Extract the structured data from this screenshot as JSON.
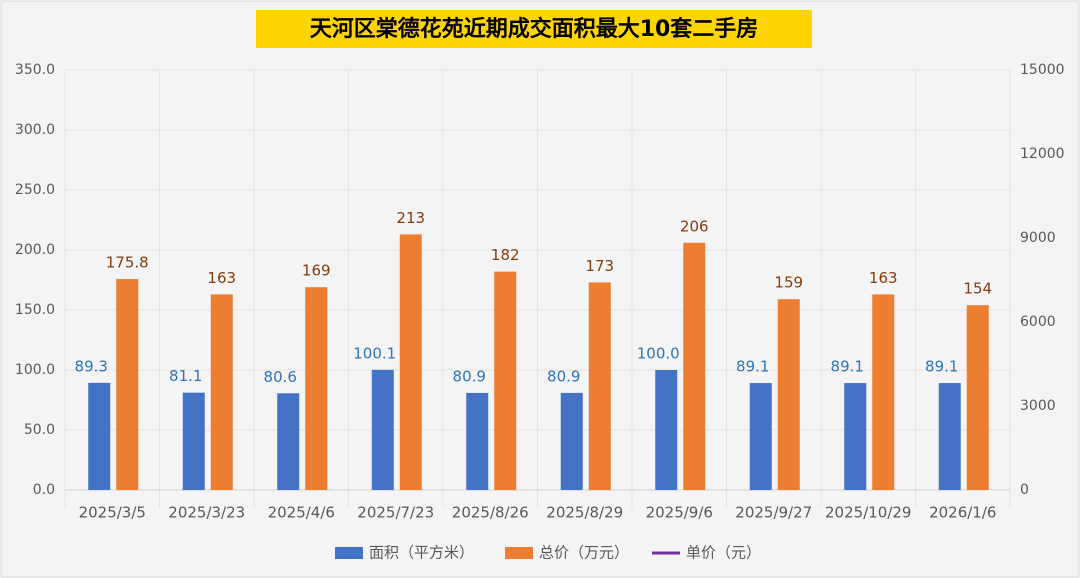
{
  "chart_data": {
    "type": "bar",
    "title": "天河区棠德花苑近期成交面积最大10套二手房",
    "categories": [
      "2025/3/5",
      "2025/3/23",
      "2025/4/6",
      "2025/7/23",
      "2025/8/26",
      "2025/8/29",
      "2025/9/6",
      "2025/9/27",
      "2025/10/29",
      "2026/1/6"
    ],
    "series": [
      {
        "name": "面积（平方米）",
        "color": "#4472c4",
        "values": [
          89.3,
          81.1,
          80.6,
          100.1,
          80.9,
          80.9,
          100.0,
          89.1,
          89.1,
          89.1
        ],
        "value_labels": [
          "89.3",
          "81.1",
          "80.6",
          "100.1",
          "80.9",
          "80.9",
          "100.0",
          "89.1",
          "89.1",
          "89.1"
        ]
      },
      {
        "name": "总价（万元）",
        "color": "#ed7d31",
        "values": [
          175.8,
          163,
          169,
          213,
          182,
          173,
          206,
          159,
          163,
          154
        ],
        "value_labels": [
          "175.8",
          "163",
          "169",
          "213",
          "182",
          "173",
          "206",
          "159",
          "163",
          "154"
        ]
      },
      {
        "name": "单价（元）",
        "color": "#7030a0",
        "axis": "y2",
        "type": "line",
        "values": [
          null,
          null,
          null,
          null,
          null,
          null,
          null,
          null,
          null,
          null
        ]
      }
    ],
    "ylim": [
      0,
      350
    ],
    "yticks": [
      {
        "value": 0,
        "label": "0.0"
      },
      {
        "value": 50,
        "label": "50.0"
      },
      {
        "value": 100,
        "label": "100.0"
      },
      {
        "value": 150,
        "label": "150.0"
      },
      {
        "value": 200,
        "label": "200.0"
      },
      {
        "value": 250,
        "label": "250.0"
      },
      {
        "value": 300,
        "label": "300.0"
      },
      {
        "value": 350,
        "label": "350.0"
      }
    ],
    "y2lim": [
      0,
      15000
    ],
    "y2ticks": [
      0,
      3000,
      6000,
      9000,
      12000,
      15000
    ],
    "grid": true,
    "legend": "bottom"
  }
}
